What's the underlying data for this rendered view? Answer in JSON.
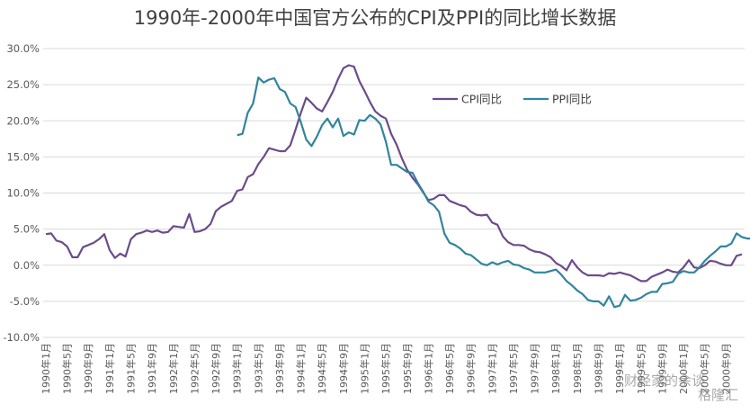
{
  "chart_data": {
    "type": "line",
    "title": "1990年-2000年中国官方公布的CPI及PPI的同比增长数据",
    "xlabel": "",
    "ylabel": "",
    "ylim": [
      -10,
      30
    ],
    "y_ticks": [
      "-10.0%",
      "-5.0%",
      "0.0%",
      "5.0%",
      "10.0%",
      "15.0%",
      "20.0%",
      "25.0%",
      "30.0%"
    ],
    "x_tick_labels": [
      "1990年1月",
      "1990年5月",
      "1990年9月",
      "1991年1月",
      "1991年5月",
      "1991年9月",
      "1992年1月",
      "1992年5月",
      "1992年9月",
      "1993年1月",
      "1993年5月",
      "1993年9月",
      "1994年1月",
      "1994年5月",
      "1994年9月",
      "1995年1月",
      "1995年5月",
      "1995年9月",
      "1996年1月",
      "1996年5月",
      "1996年9月",
      "1997年1月",
      "1997年5月",
      "1997年9月",
      "1998年1月",
      "1998年5月",
      "1998年9月",
      "1999年1月",
      "1999年5月",
      "1999年9月",
      "2000年1月",
      "2000年5月",
      "2000年9月"
    ],
    "grid": true,
    "legend_position": "upper-right",
    "x_start": "1990-01",
    "series": [
      {
        "name": "CPI同比",
        "color": "#6B4C8A",
        "values": [
          4.3,
          4.4,
          3.4,
          3.2,
          2.6,
          1.1,
          1.1,
          2.5,
          2.8,
          3.1,
          3.6,
          4.3,
          2.1,
          1.0,
          1.6,
          1.2,
          3.6,
          4.3,
          4.5,
          4.8,
          4.6,
          4.8,
          4.5,
          4.6,
          5.4,
          5.3,
          5.2,
          7.1,
          4.6,
          4.7,
          5.0,
          5.7,
          7.5,
          8.1,
          8.5,
          8.9,
          10.3,
          10.5,
          12.2,
          12.6,
          14.0,
          15.0,
          16.2,
          16.0,
          15.8,
          15.8,
          16.6,
          18.8,
          21.1,
          23.2,
          22.5,
          21.7,
          21.3,
          22.6,
          24.0,
          25.8,
          27.3,
          27.7,
          27.5,
          25.5,
          24.1,
          22.6,
          21.3,
          20.7,
          20.3,
          18.2,
          16.7,
          14.8,
          13.2,
          12.1,
          11.2,
          10.1,
          9.0,
          9.2,
          9.7,
          9.7,
          8.9,
          8.6,
          8.3,
          8.1,
          7.4,
          7.0,
          6.9,
          7.0,
          5.9,
          5.6,
          4.0,
          3.2,
          2.8,
          2.8,
          2.7,
          2.2,
          1.9,
          1.8,
          1.5,
          1.1,
          0.3,
          -0.1,
          -0.7,
          0.7,
          -0.3,
          -1.0,
          -1.4,
          -1.4,
          -1.4,
          -1.5,
          -1.1,
          -1.2,
          -1.0,
          -1.2,
          -1.4,
          -1.8,
          -2.2,
          -2.2,
          -1.6,
          -1.3,
          -1.0,
          -0.6,
          -0.9,
          -1.0,
          -0.3,
          0.7,
          -0.3,
          -0.4,
          0.0,
          0.6,
          0.5,
          0.2,
          0.0,
          0.0,
          1.3,
          1.5
        ]
      },
      {
        "name": "PPI同比",
        "color": "#31859C",
        "start_index": 36,
        "values": [
          18.0,
          18.2,
          21.1,
          22.4,
          26.0,
          25.3,
          25.7,
          25.9,
          24.4,
          24.0,
          22.4,
          21.9,
          19.8,
          17.4,
          16.5,
          17.8,
          19.4,
          20.3,
          19.1,
          20.3,
          17.9,
          18.4,
          18.1,
          20.1,
          20.0,
          20.8,
          20.3,
          19.5,
          17.1,
          13.9,
          13.9,
          13.4,
          12.9,
          12.8,
          11.4,
          10.2,
          8.8,
          8.3,
          7.4,
          4.4,
          3.1,
          2.8,
          2.3,
          1.6,
          1.4,
          0.8,
          0.2,
          0.0,
          0.4,
          0.1,
          0.4,
          0.6,
          0.1,
          0.0,
          -0.4,
          -0.6,
          -1.0,
          -1.0,
          -1.0,
          -0.8,
          -0.6,
          -1.3,
          -2.2,
          -2.8,
          -3.5,
          -4.0,
          -4.8,
          -5.0,
          -5.0,
          -5.6,
          -4.3,
          -5.8,
          -5.6,
          -4.1,
          -4.9,
          -4.8,
          -4.5,
          -4.0,
          -3.7,
          -3.7,
          -2.6,
          -2.5,
          -2.3,
          -1.2,
          -0.8,
          -1.0,
          -1.0,
          -0.3,
          0.6,
          1.3,
          1.9,
          2.6,
          2.6,
          3.0,
          4.4,
          3.9,
          3.7,
          3.7,
          3.6,
          2.8
        ]
      }
    ]
  },
  "watermark": {
    "text1": "财经家的余谈",
    "text2": "格隆汇"
  }
}
